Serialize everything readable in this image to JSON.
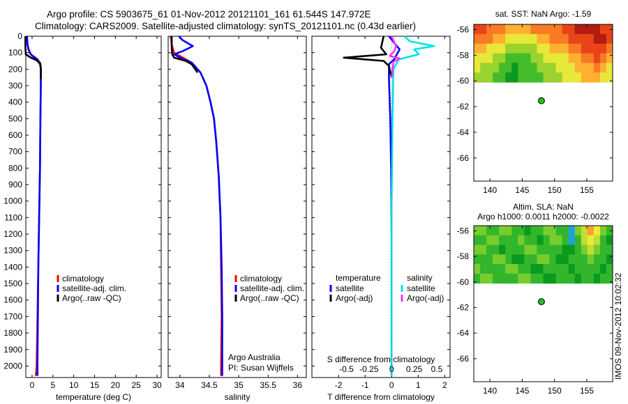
{
  "header": {
    "line1": "Argo profile: CS 5903675_61 01-Nov-2012 20121101_161 61.544S 147.972E",
    "line2": "Climatology: CARS2009. Satellite-adjusted climatology: synTS_20121101.nc (0.43d earlier)"
  },
  "side_label": "IMOS 09-Nov-2012 10:02:32",
  "colors": {
    "climatology": "#ff0000",
    "satellite": "#0000ff",
    "argo": "#000000",
    "sal_satellite": "#00e5e5",
    "sal_argo": "#ff33ff"
  },
  "chart_data": [
    {
      "id": "temperature",
      "type": "line",
      "xlabel": "temperature (deg C)",
      "ylim": [
        2070,
        0
      ],
      "xlim": [
        -1.5,
        31
      ],
      "xticks": [
        0,
        5,
        10,
        15,
        20,
        25,
        30
      ],
      "xtick_labels": [
        "0",
        "5",
        "10",
        "15",
        "20",
        "25",
        "30"
      ],
      "yticks": [
        0,
        100,
        200,
        300,
        400,
        500,
        600,
        700,
        800,
        900,
        1000,
        1100,
        1200,
        1300,
        1400,
        1500,
        1600,
        1700,
        1800,
        1900,
        2000
      ],
      "ytick_labels": [
        "0",
        "100",
        "200",
        "300",
        "400",
        "500",
        "600",
        "700",
        "800",
        "900",
        "1000",
        "1100",
        "1200",
        "1300",
        "1400",
        "1500",
        "1600",
        "1700",
        "1800",
        "1900",
        "2000"
      ],
      "legend": [
        "climatology",
        "satellite-adj. clim.",
        "Argo(..raw -QC)"
      ],
      "series": [
        {
          "name": "climatology",
          "color": "#ff0000",
          "x": [
            -1.3,
            -1.1,
            -0.6,
            0.4,
            1.3,
            1.9,
            2.1,
            2.1,
            2.0,
            1.9,
            1.7,
            1.5,
            1.3,
            1.1,
            0.9
          ],
          "y": [
            0,
            50,
            100,
            130,
            150,
            170,
            200,
            300,
            500,
            800,
            1100,
            1400,
            1700,
            2000,
            2060
          ]
        },
        {
          "name": "satellite-adj. clim.",
          "color": "#0000ff",
          "x": [
            -1.2,
            -1.1,
            -0.9,
            -0.3,
            1.3,
            2.0,
            2.1,
            2.1,
            2.0,
            1.9,
            1.7,
            1.5,
            1.4,
            1.3,
            1.3
          ],
          "y": [
            0,
            50,
            80,
            110,
            140,
            170,
            200,
            300,
            500,
            800,
            1100,
            1400,
            1700,
            2000,
            2060
          ]
        },
        {
          "name": "Argo(..raw -QC)",
          "color": "#000000",
          "x": [
            -1.6,
            -1.6,
            -1.5,
            -0.3,
            1.0,
            1.9,
            2.1,
            2.1
          ],
          "y": [
            0,
            70,
            110,
            130,
            145,
            160,
            190,
            260
          ]
        }
      ]
    },
    {
      "id": "salinity",
      "type": "line",
      "xlabel": "salinity",
      "ylim": [
        2070,
        0
      ],
      "xlim": [
        33.8,
        36.15
      ],
      "xticks": [
        34,
        34.5,
        35,
        35.5,
        36
      ],
      "xtick_labels": [
        "34",
        "34.5",
        "35",
        "35.5",
        "36"
      ],
      "legend": [
        "climatology",
        "satellite-adj. clim.",
        "Argo(..raw -QC)"
      ],
      "annotation": [
        "Argo Australia",
        "PI: Susan Wijffels"
      ],
      "series": [
        {
          "name": "climatology",
          "color": "#ff0000",
          "x": [
            33.84,
            33.86,
            33.9,
            34.05,
            34.2,
            34.35,
            34.45,
            34.52,
            34.58,
            34.62,
            34.66,
            34.69,
            34.7,
            34.71,
            34.7,
            34.7
          ],
          "y": [
            0,
            50,
            100,
            130,
            160,
            220,
            300,
            400,
            500,
            650,
            850,
            1100,
            1400,
            1700,
            2000,
            2060
          ]
        },
        {
          "name": "satellite-adj. clim.",
          "color": "#0000ff",
          "x": [
            33.98,
            34.05,
            34.22,
            34.05,
            33.9,
            34.0,
            34.1,
            34.2,
            34.35,
            34.45,
            34.52,
            34.58,
            34.62,
            34.66,
            34.69,
            34.71,
            34.72,
            34.72,
            34.72
          ],
          "y": [
            0,
            25,
            60,
            90,
            110,
            130,
            145,
            160,
            220,
            300,
            400,
            500,
            650,
            850,
            1100,
            1400,
            1700,
            2000,
            2060
          ]
        },
        {
          "name": "Argo(..raw -QC)",
          "color": "#000000",
          "x": [
            33.86,
            33.86,
            33.87,
            33.9,
            34.0,
            34.1,
            34.2,
            34.3
          ],
          "y": [
            0,
            70,
            110,
            130,
            140,
            150,
            170,
            220
          ]
        }
      ]
    },
    {
      "id": "difference",
      "type": "line",
      "xlabel": "T difference from climatology",
      "top_xlabel": "S difference from climatology",
      "ylim": [
        2070,
        0
      ],
      "xlim": [
        -3.0,
        2.2
      ],
      "xticks": [
        -2,
        -1,
        0,
        1,
        2
      ],
      "xtick_labels": [
        "-2",
        "-1",
        "0",
        "1",
        "2"
      ],
      "sticks": [
        -0.5,
        -0.25,
        0,
        0.25,
        0.5
      ],
      "stick_labels": [
        "-0.5",
        "-0.25",
        "0",
        "0.25",
        "0.5"
      ],
      "s_scale": 3.4,
      "legend_temperature_title": "temperature",
      "legend_salinity_title": "salinity",
      "legend_temperature": [
        "satellite",
        "Argo(-adj)"
      ],
      "legend_salinity": [
        "satellite",
        "Argo(-adj)"
      ],
      "series": [
        {
          "name": "T satellite",
          "color": "#0000ff",
          "x": [
            -0.1,
            0.1,
            0.3,
            0.2,
            0.1,
            -0.1,
            -0.1,
            -0.05,
            -0.02,
            0,
            0,
            0
          ],
          "y": [
            0,
            40,
            80,
            110,
            140,
            170,
            250,
            500,
            800,
            1200,
            1600,
            2060
          ]
        },
        {
          "name": "T Argo(-adj)",
          "color": "#000000",
          "x": [
            -0.3,
            -0.4,
            -0.2,
            -1.8,
            -0.3,
            -0.1,
            0
          ],
          "y": [
            0,
            70,
            110,
            130,
            150,
            180,
            250
          ]
        },
        {
          "name": "S satellite",
          "color": "#00e5e5",
          "x": [
            0.14,
            0.2,
            0.47,
            0.25,
            0.3,
            0.08,
            0.02,
            0.01,
            0,
            0,
            0
          ],
          "y": [
            0,
            30,
            60,
            80,
            110,
            140,
            200,
            500,
            1000,
            1500,
            2060
          ]
        },
        {
          "name": "S Argo(-adj)",
          "color": "#ff33ff",
          "x": [
            0,
            0.05,
            0.03,
            -0.02,
            0.09,
            0.02,
            0
          ],
          "y": [
            0,
            60,
            90,
            120,
            135,
            155,
            250
          ]
        }
      ]
    },
    {
      "id": "sst_map",
      "type": "heatmap",
      "title": "sat. SST: NaN Argo: -1.59",
      "xlim": [
        137.5,
        159
      ],
      "ylim": [
        -67.8,
        -55.6
      ],
      "xticks": [
        140,
        145,
        150,
        155
      ],
      "xtick_labels": [
        "140",
        "145",
        "150",
        "155"
      ],
      "yticks": [
        -56,
        -58,
        -60,
        -62,
        -64,
        -66
      ],
      "ytick_labels": [
        "-56",
        "-58",
        "-60",
        "-62",
        "-64",
        "-66"
      ],
      "data_lat_range": [
        -60.1,
        -55.6
      ],
      "marker": {
        "lon": 147.972,
        "lat": -61.544
      },
      "palette": [
        "#0a9a20",
        "#44bb2a",
        "#9ad22e",
        "#e8e83a",
        "#ffb030",
        "#f87a22",
        "#e84418",
        "#b01c10"
      ],
      "grid": [
        [
          6,
          6,
          5,
          5,
          5,
          4,
          4,
          4,
          4,
          5,
          5,
          5,
          5,
          5,
          6,
          6,
          7,
          7,
          7,
          7,
          6,
          6
        ],
        [
          5,
          5,
          5,
          4,
          4,
          3,
          3,
          3,
          3,
          3,
          4,
          4,
          5,
          5,
          5,
          6,
          6,
          6,
          6,
          7,
          7,
          6
        ],
        [
          4,
          4,
          3,
          3,
          3,
          2,
          2,
          2,
          2,
          2,
          3,
          3,
          4,
          4,
          4,
          5,
          5,
          6,
          6,
          6,
          6,
          5
        ],
        [
          3,
          3,
          3,
          2,
          2,
          1,
          1,
          1,
          1,
          2,
          2,
          3,
          3,
          3,
          3,
          4,
          4,
          5,
          5,
          6,
          5,
          4
        ],
        [
          3,
          2,
          2,
          2,
          1,
          1,
          0,
          1,
          1,
          1,
          2,
          2,
          2,
          3,
          3,
          3,
          4,
          4,
          4,
          5,
          4,
          3
        ],
        [
          2,
          2,
          2,
          1,
          1,
          0,
          0,
          1,
          1,
          1,
          1,
          2,
          2,
          2,
          3,
          3,
          3,
          4,
          4,
          4,
          3,
          3
        ]
      ]
    },
    {
      "id": "sla_map",
      "type": "heatmap",
      "title": "Altim. SLA: NaN",
      "subtitle": "Argo h1000: 0.0011 h2000: -0.0022",
      "xlim": [
        137.5,
        159
      ],
      "ylim": [
        -67.8,
        -55.6
      ],
      "xticks": [
        140,
        145,
        150,
        155
      ],
      "xtick_labels": [
        "140",
        "145",
        "150",
        "155"
      ],
      "yticks": [
        -56,
        -58,
        -60,
        -62,
        -64,
        -66
      ],
      "ytick_labels": [
        "-56",
        "-58",
        "-60",
        "-62",
        "-64",
        "-66"
      ],
      "data_lat_range": [
        -60.1,
        -55.6
      ],
      "marker": {
        "lon": 147.972,
        "lat": -61.544
      },
      "palette": [
        "#20a0d8",
        "#0a9a20",
        "#33b62c",
        "#77cc2e",
        "#c2dd34",
        "#ecec3a",
        "#f8a030"
      ],
      "grid": [
        [
          3,
          3,
          2,
          2,
          3,
          3,
          2,
          2,
          1,
          2,
          2,
          3,
          3,
          2,
          2,
          0,
          3,
          4,
          6,
          5,
          3,
          2
        ],
        [
          2,
          2,
          3,
          3,
          2,
          2,
          2,
          3,
          2,
          2,
          1,
          2,
          3,
          3,
          2,
          0,
          2,
          4,
          5,
          4,
          2,
          1
        ],
        [
          3,
          3,
          2,
          2,
          1,
          2,
          2,
          2,
          3,
          3,
          2,
          2,
          2,
          2,
          1,
          1,
          2,
          3,
          4,
          3,
          2,
          2
        ],
        [
          2,
          2,
          2,
          3,
          3,
          2,
          1,
          1,
          2,
          2,
          3,
          3,
          2,
          1,
          1,
          2,
          2,
          2,
          3,
          2,
          2,
          1
        ],
        [
          3,
          2,
          2,
          2,
          2,
          3,
          3,
          2,
          2,
          1,
          1,
          2,
          2,
          2,
          2,
          1,
          2,
          2,
          2,
          2,
          1,
          2
        ],
        [
          2,
          3,
          3,
          2,
          2,
          2,
          2,
          3,
          3,
          2,
          2,
          1,
          1,
          2,
          2,
          2,
          1,
          2,
          2,
          1,
          2,
          2
        ]
      ]
    }
  ]
}
